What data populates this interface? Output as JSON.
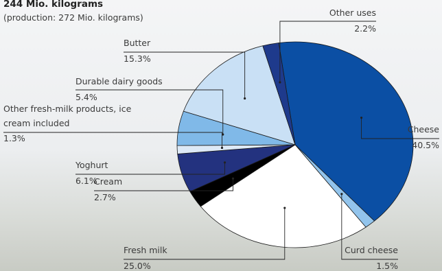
{
  "chart_data": {
    "type": "pie",
    "title": "244 Mio. kilograms",
    "subtitle": "(production: 272 Mio. kilograms)",
    "categories": [
      "Cheese",
      "Curd cheese",
      "Fresh milk",
      "Cream",
      "Yoghurt",
      "Other fresh-milk products, ice cream included",
      "Durable dairy goods",
      "Butter",
      "Other uses"
    ],
    "values": [
      40.5,
      1.5,
      25.0,
      2.7,
      6.1,
      1.3,
      5.4,
      15.3,
      2.2
    ],
    "value_labels": [
      "40.5%",
      "1.5%",
      "25.0%",
      "2.7%",
      "6.1%",
      "1.3%",
      "5.4%",
      "15.3%",
      "2.2%"
    ],
    "colors": [
      "#0b4fa4",
      "#92c4ec",
      "#ffffff",
      "#000000",
      "#23327f",
      "#dde9f6",
      "#80b9e8",
      "#c9e0f5",
      "#1e3a8c"
    ]
  }
}
